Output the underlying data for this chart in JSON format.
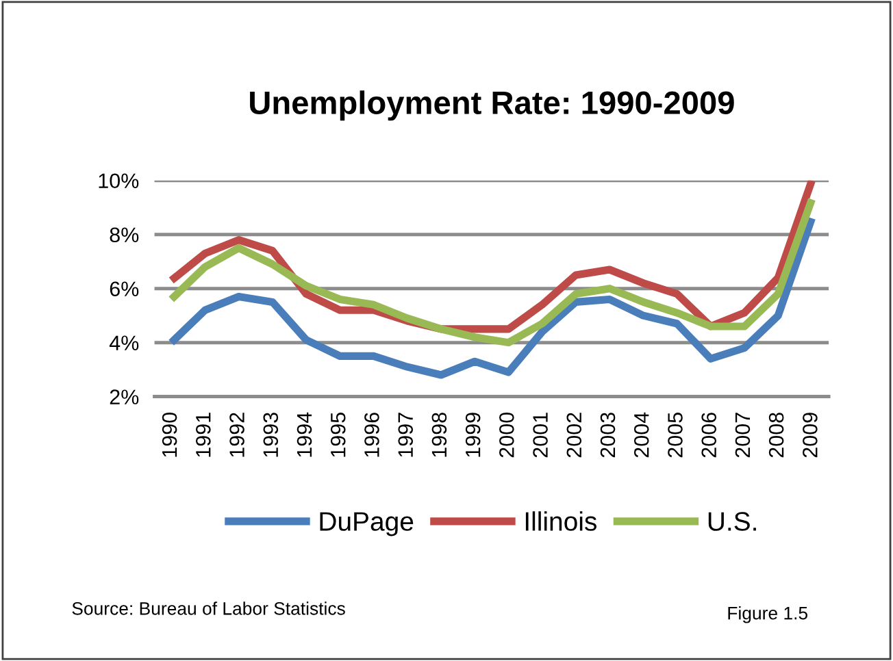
{
  "chart_data": {
    "type": "line",
    "title": "Unemployment Rate: 1990-2009",
    "categories": [
      "1990",
      "1991",
      "1992",
      "1993",
      "1994",
      "1995",
      "1996",
      "1997",
      "1998",
      "1999",
      "2000",
      "2001",
      "2002",
      "2003",
      "2004",
      "2005",
      "2006",
      "2007",
      "2008",
      "2009"
    ],
    "series": [
      {
        "name": "DuPage",
        "color": "#4a7ebb",
        "values": [
          4.0,
          5.2,
          5.7,
          5.5,
          4.1,
          3.5,
          3.5,
          3.1,
          2.8,
          3.3,
          2.9,
          4.4,
          5.5,
          5.6,
          5.0,
          4.7,
          3.4,
          3.8,
          5.0,
          8.6
        ]
      },
      {
        "name": "Illinois",
        "color": "#be4b48",
        "values": [
          6.3,
          7.3,
          7.8,
          7.4,
          5.8,
          5.2,
          5.2,
          4.8,
          4.5,
          4.5,
          4.5,
          5.4,
          6.5,
          6.7,
          6.2,
          5.8,
          4.6,
          5.1,
          6.4,
          10.0
        ]
      },
      {
        "name": "U.S.",
        "color": "#98b954",
        "values": [
          5.6,
          6.8,
          7.5,
          6.9,
          6.1,
          5.6,
          5.4,
          4.9,
          4.5,
          4.2,
          4.0,
          4.7,
          5.8,
          6.0,
          5.5,
          5.1,
          4.6,
          4.6,
          5.8,
          9.3
        ]
      }
    ],
    "ylim": [
      2,
      10
    ],
    "yticks": [
      {
        "value": 2,
        "label": "2%"
      },
      {
        "value": 4,
        "label": "4%"
      },
      {
        "value": 6,
        "label": "6%"
      },
      {
        "value": 8,
        "label": "8%"
      },
      {
        "value": 10,
        "label": "10%"
      }
    ],
    "grid": "y",
    "legend": "bottom",
    "marker": "none",
    "line_style": "solid",
    "annotations": [
      "Source: Bureau of Labor Statistics",
      "Figure 1.5"
    ]
  }
}
